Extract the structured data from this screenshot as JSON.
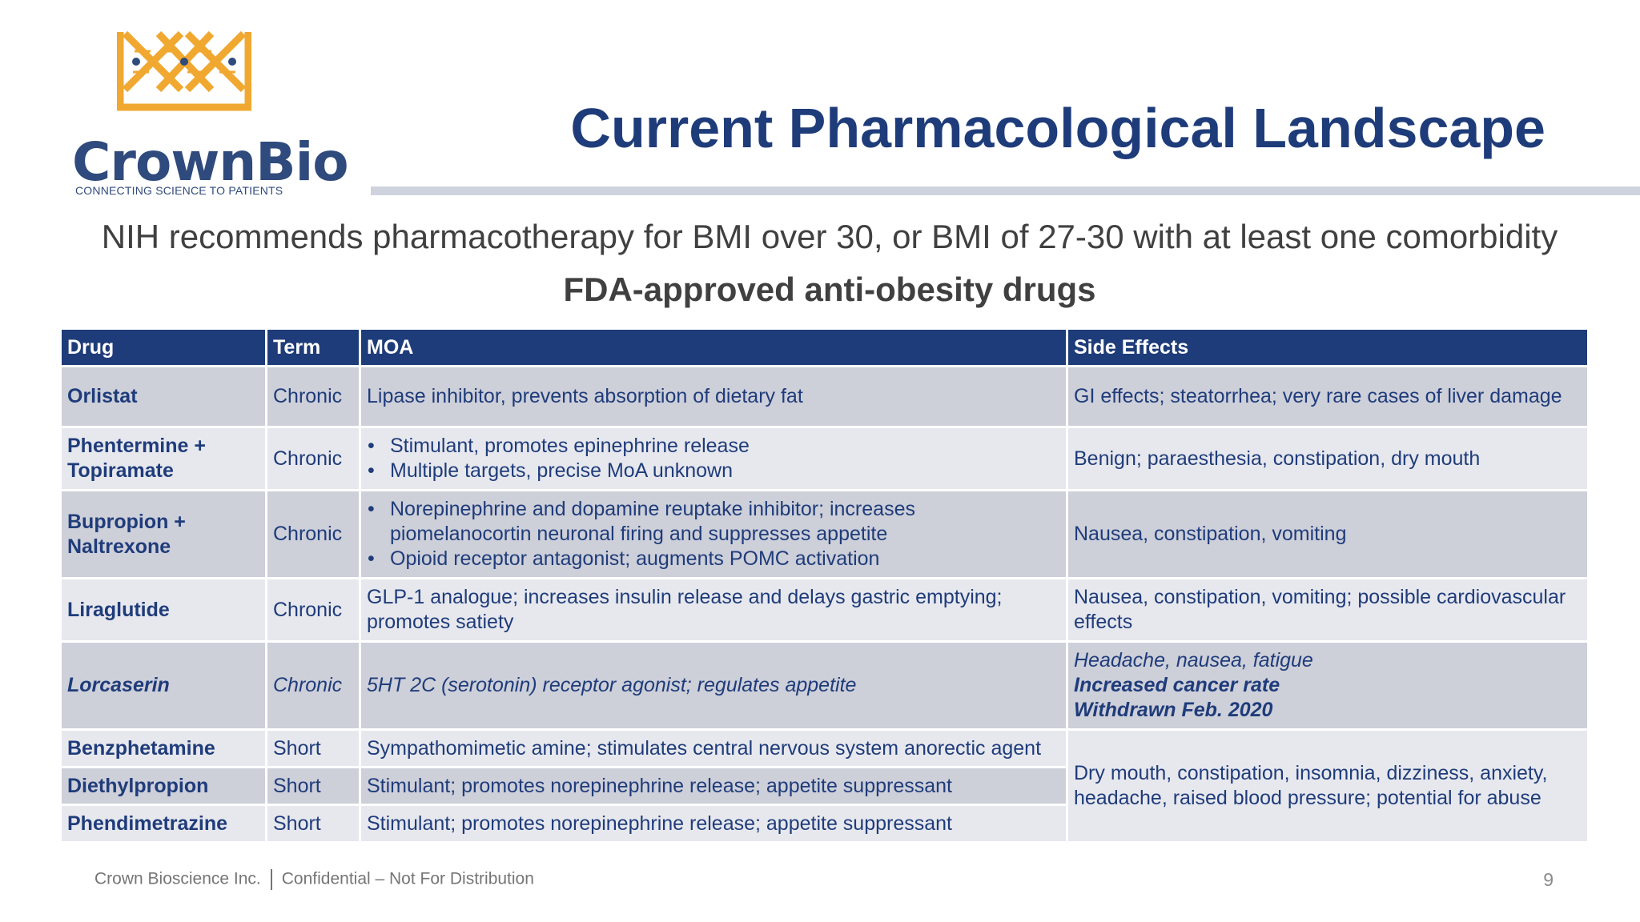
{
  "brand": {
    "name": "CrownBio",
    "tagline": "CONNECTING SCIENCE TO PATIENTS",
    "colors": {
      "navy": "#1f3c7a",
      "gold": "#f0a830"
    }
  },
  "slide": {
    "title": "Current Pharmacological Landscape",
    "subtitle": "NIH recommends pharmacotherapy for BMI over 30, or BMI of 27-30 with at least one comorbidity",
    "table_heading": "FDA-approved anti-obesity drugs"
  },
  "table": {
    "headers": {
      "drug": "Drug",
      "term": "Term",
      "moa": "MOA",
      "side_effects": "Side Effects"
    },
    "rows": [
      {
        "drug": "Orlistat",
        "term": "Chronic",
        "moa": "Lipase inhibitor, prevents absorption of dietary fat",
        "side_effects": "GI effects; steatorrhea; very rare cases of liver damage"
      },
      {
        "drug_lines": [
          "Phentermine +",
          "Topiramate"
        ],
        "term": "Chronic",
        "moa_bullets": [
          "Stimulant, promotes epinephrine release",
          "Multiple targets, precise MoA unknown"
        ],
        "side_effects": "Benign; paraesthesia, constipation, dry mouth"
      },
      {
        "drug_lines": [
          "Bupropion +",
          "Naltrexone"
        ],
        "term": "Chronic",
        "moa_bullets": [
          "Norepinephrine and dopamine reuptake inhibitor; increases piomelanocortin neuronal firing and suppresses appetite",
          "Opioid receptor antagonist; augments POMC activation"
        ],
        "side_effects": "Nausea, constipation, vomiting"
      },
      {
        "drug": "Liraglutide",
        "term": "Chronic",
        "moa": "GLP-1 analogue; increases insulin release and delays gastric emptying; promotes satiety",
        "side_effects": "Nausea, constipation, vomiting; possible cardiovascular effects"
      },
      {
        "drug": "Lorcaserin",
        "term": "Chronic",
        "moa": "5HT 2C (serotonin) receptor agonist; regulates appetite",
        "side_effects_lines": [
          "Headache, nausea, fatigue",
          "Increased cancer rate",
          "Withdrawn Feb. 2020"
        ]
      },
      {
        "drug": "Benzphetamine",
        "term": "Short",
        "moa": "Sympathomimetic amine; stimulates central nervous system anorectic agent"
      },
      {
        "drug": "Diethylpropion",
        "term": "Short",
        "moa": "Stimulant; promotes norepinephrine release; appetite suppressant"
      },
      {
        "drug": "Phendimetrazine",
        "term": "Short",
        "moa": "Stimulant; promotes norepinephrine release; appetite suppressant"
      }
    ],
    "shared_side_effects": "Dry mouth, constipation, insomnia, dizziness, anxiety, headache, raised blood pressure; potential for abuse"
  },
  "footer": {
    "company": "Crown Bioscience Inc.",
    "notice": "Confidential – Not For Distribution",
    "page_number": "9"
  }
}
